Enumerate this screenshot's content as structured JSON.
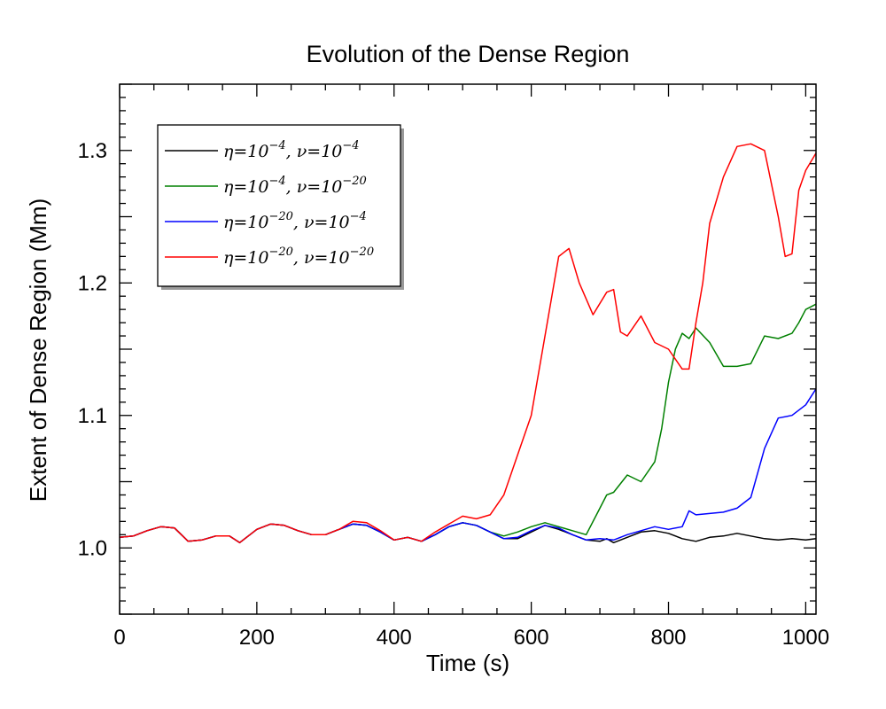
{
  "chart_data": {
    "type": "line",
    "title": "Evolution of the Dense Region",
    "xlabel": "Time (s)",
    "ylabel": "Extent of Dense Region (Mm)",
    "xlim": [
      0,
      1015
    ],
    "ylim": [
      0.95,
      1.35
    ],
    "xticks": [
      0,
      200,
      400,
      600,
      800,
      1000
    ],
    "xtick_labels": [
      "0",
      "200",
      "400",
      "600",
      "800",
      "1000"
    ],
    "yticks": [
      1.0,
      1.1,
      1.2,
      1.3
    ],
    "ytick_labels": [
      "1.0",
      "1.1",
      "1.2",
      "1.3"
    ],
    "legend_position": "top-left",
    "series": [
      {
        "name": "η=10^-4, ν=10^-4",
        "legend": {
          "eta_exp": "−4",
          "nu_exp": "−4"
        },
        "color": "#000000",
        "x": [
          0,
          20,
          40,
          60,
          80,
          100,
          120,
          140,
          160,
          175,
          200,
          220,
          240,
          260,
          280,
          300,
          320,
          340,
          360,
          380,
          400,
          420,
          440,
          460,
          480,
          500,
          520,
          540,
          560,
          580,
          600,
          620,
          640,
          660,
          680,
          700,
          710,
          720,
          740,
          760,
          780,
          800,
          820,
          840,
          860,
          880,
          900,
          920,
          940,
          960,
          980,
          1000,
          1015
        ],
        "y": [
          1.008,
          1.009,
          1.013,
          1.016,
          1.015,
          1.005,
          1.006,
          1.009,
          1.009,
          1.004,
          1.014,
          1.018,
          1.017,
          1.013,
          1.01,
          1.01,
          1.014,
          1.018,
          1.017,
          1.012,
          1.006,
          1.008,
          1.005,
          1.01,
          1.016,
          1.019,
          1.017,
          1.012,
          1.007,
          1.007,
          1.012,
          1.017,
          1.014,
          1.01,
          1.006,
          1.005,
          1.007,
          1.004,
          1.008,
          1.012,
          1.013,
          1.011,
          1.007,
          1.005,
          1.008,
          1.009,
          1.011,
          1.009,
          1.007,
          1.006,
          1.007,
          1.006,
          1.007
        ]
      },
      {
        "name": "η=10^-4, ν=10^-20",
        "legend": {
          "eta_exp": "−4",
          "nu_exp": "−20"
        },
        "color": "#008000",
        "x": [
          0,
          20,
          40,
          60,
          80,
          100,
          120,
          140,
          160,
          175,
          200,
          220,
          240,
          260,
          280,
          300,
          320,
          340,
          360,
          380,
          400,
          420,
          440,
          460,
          480,
          500,
          520,
          540,
          560,
          580,
          600,
          620,
          640,
          660,
          680,
          700,
          710,
          720,
          740,
          760,
          780,
          790,
          800,
          810,
          820,
          830,
          840,
          860,
          880,
          900,
          920,
          940,
          960,
          980,
          990,
          1000,
          1015
        ],
        "y": [
          1.008,
          1.009,
          1.013,
          1.016,
          1.015,
          1.005,
          1.006,
          1.009,
          1.009,
          1.004,
          1.014,
          1.018,
          1.017,
          1.013,
          1.01,
          1.01,
          1.014,
          1.018,
          1.017,
          1.012,
          1.006,
          1.008,
          1.005,
          1.01,
          1.016,
          1.019,
          1.017,
          1.012,
          1.009,
          1.012,
          1.016,
          1.019,
          1.016,
          1.013,
          1.01,
          1.03,
          1.04,
          1.042,
          1.055,
          1.05,
          1.065,
          1.09,
          1.125,
          1.15,
          1.162,
          1.158,
          1.166,
          1.155,
          1.137,
          1.137,
          1.139,
          1.16,
          1.158,
          1.162,
          1.17,
          1.18,
          1.184
        ]
      },
      {
        "name": "η=10^-20, ν=10^-4",
        "legend": {
          "eta_exp": "−20",
          "nu_exp": "−4"
        },
        "color": "#0000ff",
        "x": [
          0,
          20,
          40,
          60,
          80,
          100,
          120,
          140,
          160,
          175,
          200,
          220,
          240,
          260,
          280,
          300,
          320,
          340,
          360,
          380,
          400,
          420,
          440,
          460,
          480,
          500,
          520,
          540,
          560,
          580,
          600,
          620,
          640,
          660,
          680,
          700,
          720,
          740,
          760,
          780,
          800,
          820,
          830,
          840,
          860,
          880,
          900,
          920,
          940,
          960,
          980,
          1000,
          1015
        ],
        "y": [
          1.008,
          1.009,
          1.013,
          1.016,
          1.015,
          1.005,
          1.006,
          1.009,
          1.009,
          1.004,
          1.014,
          1.018,
          1.017,
          1.013,
          1.01,
          1.01,
          1.014,
          1.018,
          1.017,
          1.012,
          1.006,
          1.008,
          1.005,
          1.01,
          1.016,
          1.019,
          1.017,
          1.012,
          1.007,
          1.008,
          1.013,
          1.017,
          1.015,
          1.01,
          1.006,
          1.007,
          1.006,
          1.01,
          1.013,
          1.016,
          1.014,
          1.016,
          1.028,
          1.025,
          1.026,
          1.027,
          1.03,
          1.038,
          1.075,
          1.098,
          1.1,
          1.108,
          1.12
        ]
      },
      {
        "name": "η=10^-20, ν=10^-20",
        "legend": {
          "eta_exp": "−20",
          "nu_exp": "−20"
        },
        "color": "#ff0000",
        "x": [
          0,
          20,
          40,
          60,
          80,
          100,
          120,
          140,
          160,
          175,
          200,
          220,
          240,
          260,
          280,
          300,
          320,
          340,
          360,
          380,
          400,
          420,
          440,
          460,
          480,
          500,
          520,
          540,
          560,
          580,
          600,
          620,
          640,
          655,
          670,
          690,
          710,
          720,
          730,
          740,
          760,
          780,
          800,
          820,
          830,
          840,
          850,
          860,
          880,
          900,
          920,
          940,
          960,
          970,
          980,
          990,
          1000,
          1015
        ],
        "y": [
          1.008,
          1.009,
          1.013,
          1.016,
          1.015,
          1.005,
          1.006,
          1.009,
          1.009,
          1.004,
          1.014,
          1.018,
          1.017,
          1.013,
          1.01,
          1.01,
          1.014,
          1.02,
          1.019,
          1.013,
          1.006,
          1.008,
          1.005,
          1.012,
          1.018,
          1.024,
          1.022,
          1.025,
          1.04,
          1.07,
          1.1,
          1.16,
          1.22,
          1.226,
          1.2,
          1.176,
          1.193,
          1.195,
          1.163,
          1.16,
          1.175,
          1.155,
          1.15,
          1.135,
          1.135,
          1.17,
          1.2,
          1.245,
          1.28,
          1.303,
          1.305,
          1.3,
          1.25,
          1.22,
          1.222,
          1.27,
          1.285,
          1.298
        ]
      }
    ]
  }
}
